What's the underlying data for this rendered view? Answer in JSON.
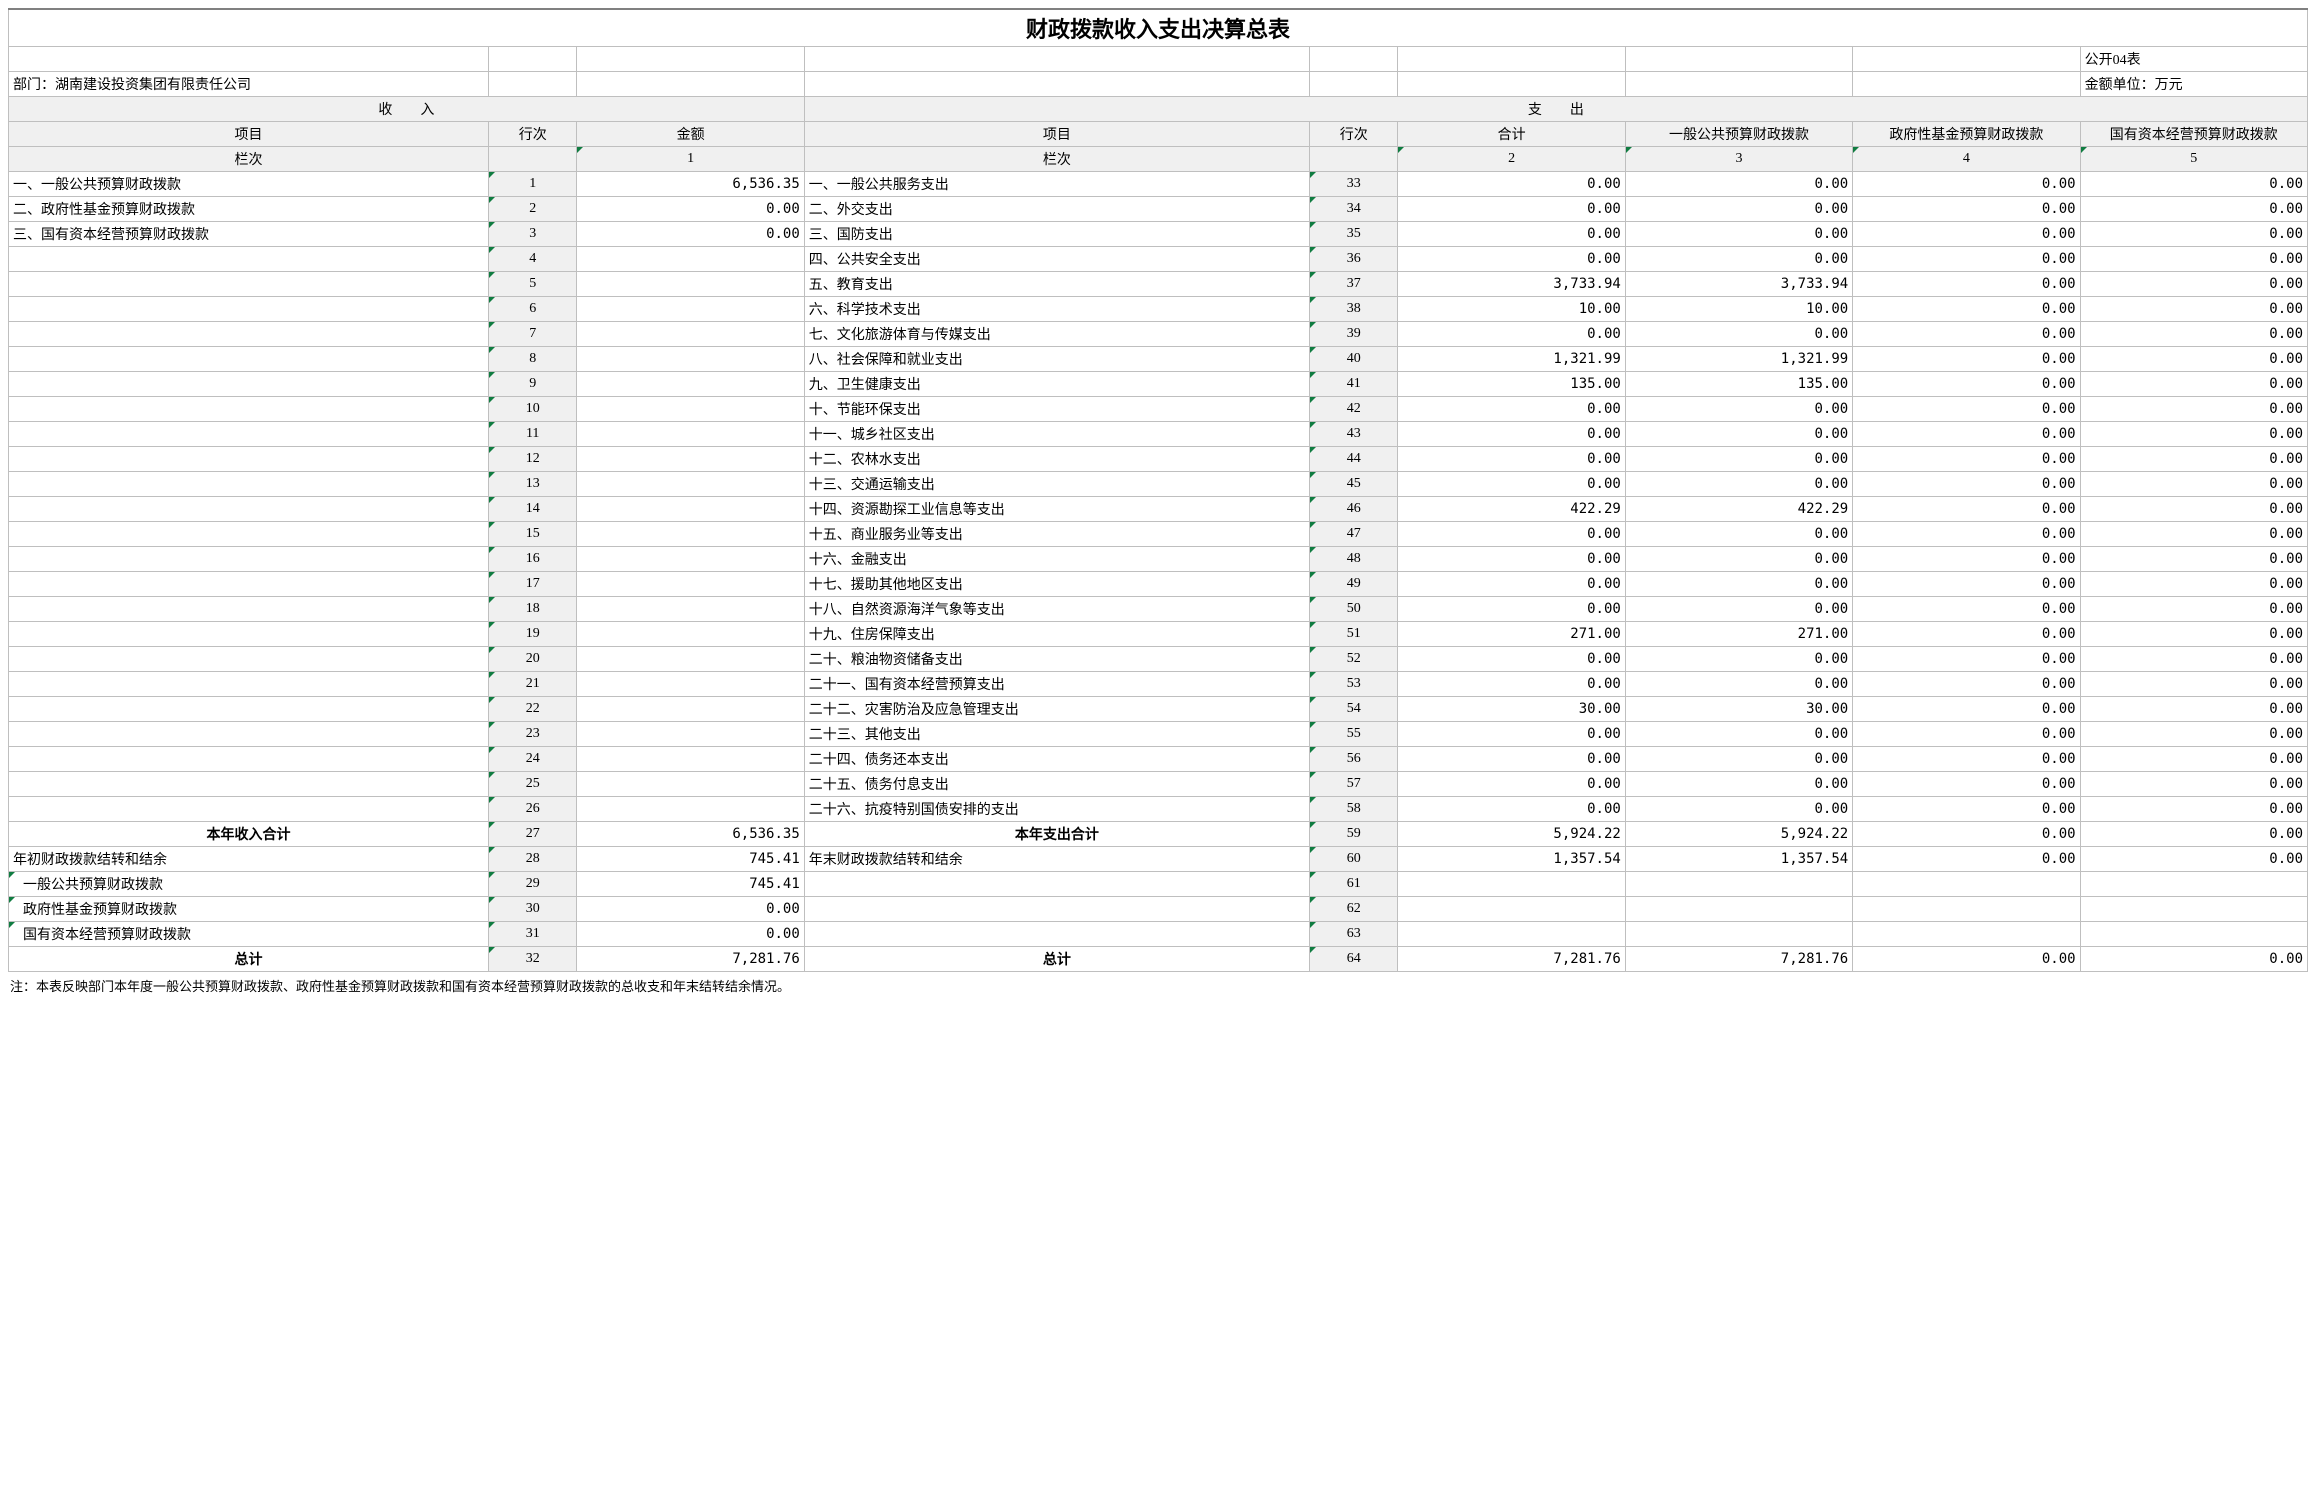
{
  "title": "财政拨款收入支出决算总表",
  "form_label": "公开04表",
  "dept": "部门：湖南建设投资集团有限责任公司",
  "unit": "金额单位：万元",
  "sec_income": "收　　入",
  "sec_expense": "支　　出",
  "h_item": "项目",
  "h_row": "行次",
  "h_amt": "金额",
  "h_total": "合计",
  "h_c1": "一般公共预算财政拨款",
  "h_c2": "政府性基金预算财政拨款",
  "h_c3": "国有资本经营预算财政拨款",
  "h_col": "栏次",
  "colnums": [
    "1",
    "2",
    "3",
    "4",
    "5"
  ],
  "income_items": [
    "一、一般公共预算财政拨款",
    "二、政府性基金预算财政拨款",
    "三、国有资本经营预算财政拨款"
  ],
  "income_amts": [
    "6,536.35",
    "0.00",
    "0.00"
  ],
  "expense_items": [
    "一、一般公共服务支出",
    "二、外交支出",
    "三、国防支出",
    "四、公共安全支出",
    "五、教育支出",
    "六、科学技术支出",
    "七、文化旅游体育与传媒支出",
    "八、社会保障和就业支出",
    "九、卫生健康支出",
    "十、节能环保支出",
    "十一、城乡社区支出",
    "十二、农林水支出",
    "十三、交通运输支出",
    "十四、资源勘探工业信息等支出",
    "十五、商业服务业等支出",
    "十六、金融支出",
    "十七、援助其他地区支出",
    "十八、自然资源海洋气象等支出",
    "十九、住房保障支出",
    "二十、粮油物资储备支出",
    "二十一、国有资本经营预算支出",
    "二十二、灾害防治及应急管理支出",
    "二十三、其他支出",
    "二十四、债务还本支出",
    "二十五、债务付息支出",
    "二十六、抗疫特别国债安排的支出"
  ],
  "expense_vals": [
    [
      "0.00",
      "0.00",
      "0.00",
      "0.00"
    ],
    [
      "0.00",
      "0.00",
      "0.00",
      "0.00"
    ],
    [
      "0.00",
      "0.00",
      "0.00",
      "0.00"
    ],
    [
      "0.00",
      "0.00",
      "0.00",
      "0.00"
    ],
    [
      "3,733.94",
      "3,733.94",
      "0.00",
      "0.00"
    ],
    [
      "10.00",
      "10.00",
      "0.00",
      "0.00"
    ],
    [
      "0.00",
      "0.00",
      "0.00",
      "0.00"
    ],
    [
      "1,321.99",
      "1,321.99",
      "0.00",
      "0.00"
    ],
    [
      "135.00",
      "135.00",
      "0.00",
      "0.00"
    ],
    [
      "0.00",
      "0.00",
      "0.00",
      "0.00"
    ],
    [
      "0.00",
      "0.00",
      "0.00",
      "0.00"
    ],
    [
      "0.00",
      "0.00",
      "0.00",
      "0.00"
    ],
    [
      "0.00",
      "0.00",
      "0.00",
      "0.00"
    ],
    [
      "422.29",
      "422.29",
      "0.00",
      "0.00"
    ],
    [
      "0.00",
      "0.00",
      "0.00",
      "0.00"
    ],
    [
      "0.00",
      "0.00",
      "0.00",
      "0.00"
    ],
    [
      "0.00",
      "0.00",
      "0.00",
      "0.00"
    ],
    [
      "0.00",
      "0.00",
      "0.00",
      "0.00"
    ],
    [
      "271.00",
      "271.00",
      "0.00",
      "0.00"
    ],
    [
      "0.00",
      "0.00",
      "0.00",
      "0.00"
    ],
    [
      "0.00",
      "0.00",
      "0.00",
      "0.00"
    ],
    [
      "30.00",
      "30.00",
      "0.00",
      "0.00"
    ],
    [
      "0.00",
      "0.00",
      "0.00",
      "0.00"
    ],
    [
      "0.00",
      "0.00",
      "0.00",
      "0.00"
    ],
    [
      "0.00",
      "0.00",
      "0.00",
      "0.00"
    ],
    [
      "0.00",
      "0.00",
      "0.00",
      "0.00"
    ]
  ],
  "subtotal_in_label": "本年收入合计",
  "subtotal_in_row": "27",
  "subtotal_in_amt": "6,536.35",
  "subtotal_out_label": "本年支出合计",
  "subtotal_out_row": "59",
  "subtotal_out_vals": [
    "5,924.22",
    "5,924.22",
    "0.00",
    "0.00"
  ],
  "carry_in_label": "年初财政拨款结转和结余",
  "carry_in_row": "28",
  "carry_in_amt": "745.41",
  "carry_out_label": "年末财政拨款结转和结余",
  "carry_out_row": "60",
  "carry_out_vals": [
    "1,357.54",
    "1,357.54",
    "0.00",
    "0.00"
  ],
  "detail_labels": [
    "一般公共预算财政拨款",
    "政府性基金预算财政拨款",
    "国有资本经营预算财政拨款"
  ],
  "detail_rows_l": [
    "29",
    "30",
    "31"
  ],
  "detail_amts": [
    "745.41",
    "0.00",
    "0.00"
  ],
  "detail_rows_r": [
    "61",
    "62",
    "63"
  ],
  "grand_label": "总计",
  "grand_row_l": "32",
  "grand_amt_l": "7,281.76",
  "grand_row_r": "64",
  "grand_vals": [
    "7,281.76",
    "7,281.76",
    "0.00",
    "0.00"
  ],
  "note": "注：本表反映部门本年度一般公共预算财政拨款、政府性基金预算财政拨款和国有资本经营预算财政拨款的总收支和年末结转结余情况。"
}
